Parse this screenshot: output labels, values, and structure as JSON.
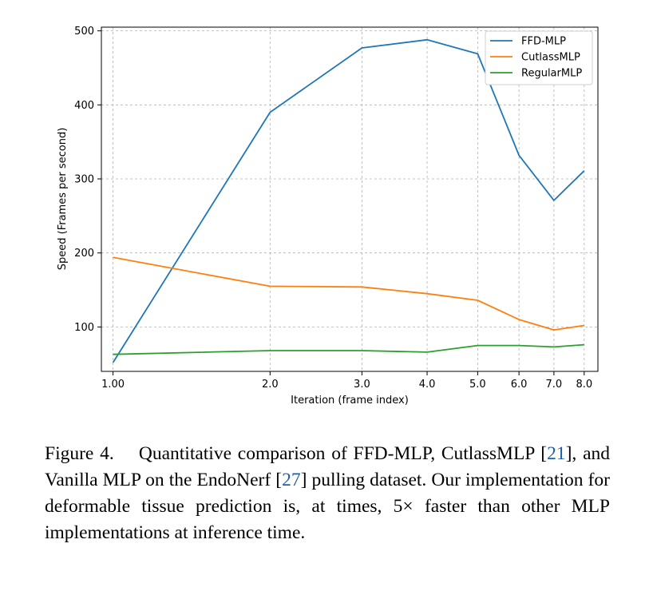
{
  "chart_data": {
    "type": "line",
    "title": "",
    "xlabel": "Iteration (frame index)",
    "ylabel": "Speed (Frames per second)",
    "x_scale": "log",
    "xlim": [
      0.95,
      8.5
    ],
    "ylim": [
      40,
      505
    ],
    "x": [
      1,
      2,
      3,
      4,
      5,
      6,
      7,
      8
    ],
    "x_ticks": [
      1,
      2,
      3,
      4,
      5,
      6,
      7,
      8
    ],
    "x_tick_labels": [
      "1.00",
      "2.0",
      "3.0",
      "4.0",
      "5.0",
      "6.0",
      "7.0",
      "8.0"
    ],
    "y_ticks": [
      100,
      200,
      300,
      400,
      500
    ],
    "y_tick_labels": [
      "100",
      "200",
      "300",
      "400",
      "500"
    ],
    "grid": true,
    "legend_position": "top-right",
    "series": [
      {
        "name": "FFD-MLP",
        "color": "#1f77b4",
        "values": [
          52,
          390,
          477,
          488,
          469,
          332,
          271,
          311
        ]
      },
      {
        "name": "CutlassMLP",
        "color": "#ff7f0e",
        "values": [
          194,
          155,
          154,
          145,
          136,
          110,
          96,
          102
        ]
      },
      {
        "name": "RegularMLP",
        "color": "#2ca02c",
        "values": [
          63,
          68,
          68,
          66,
          75,
          75,
          73,
          76
        ]
      }
    ]
  },
  "caption": {
    "label": "Figure 4.",
    "text_1": "Quantitative comparison of FFD-MLP, Cut­lassMLP [",
    "ref_1": "21",
    "text_2": "], and Vanilla MLP on the EndoNerf [",
    "ref_2": "27",
    "text_3": "] pulling dataset. Our implementation for deformable tissue prediction is, at times, 5× faster than other MLP implementations at inference time."
  }
}
